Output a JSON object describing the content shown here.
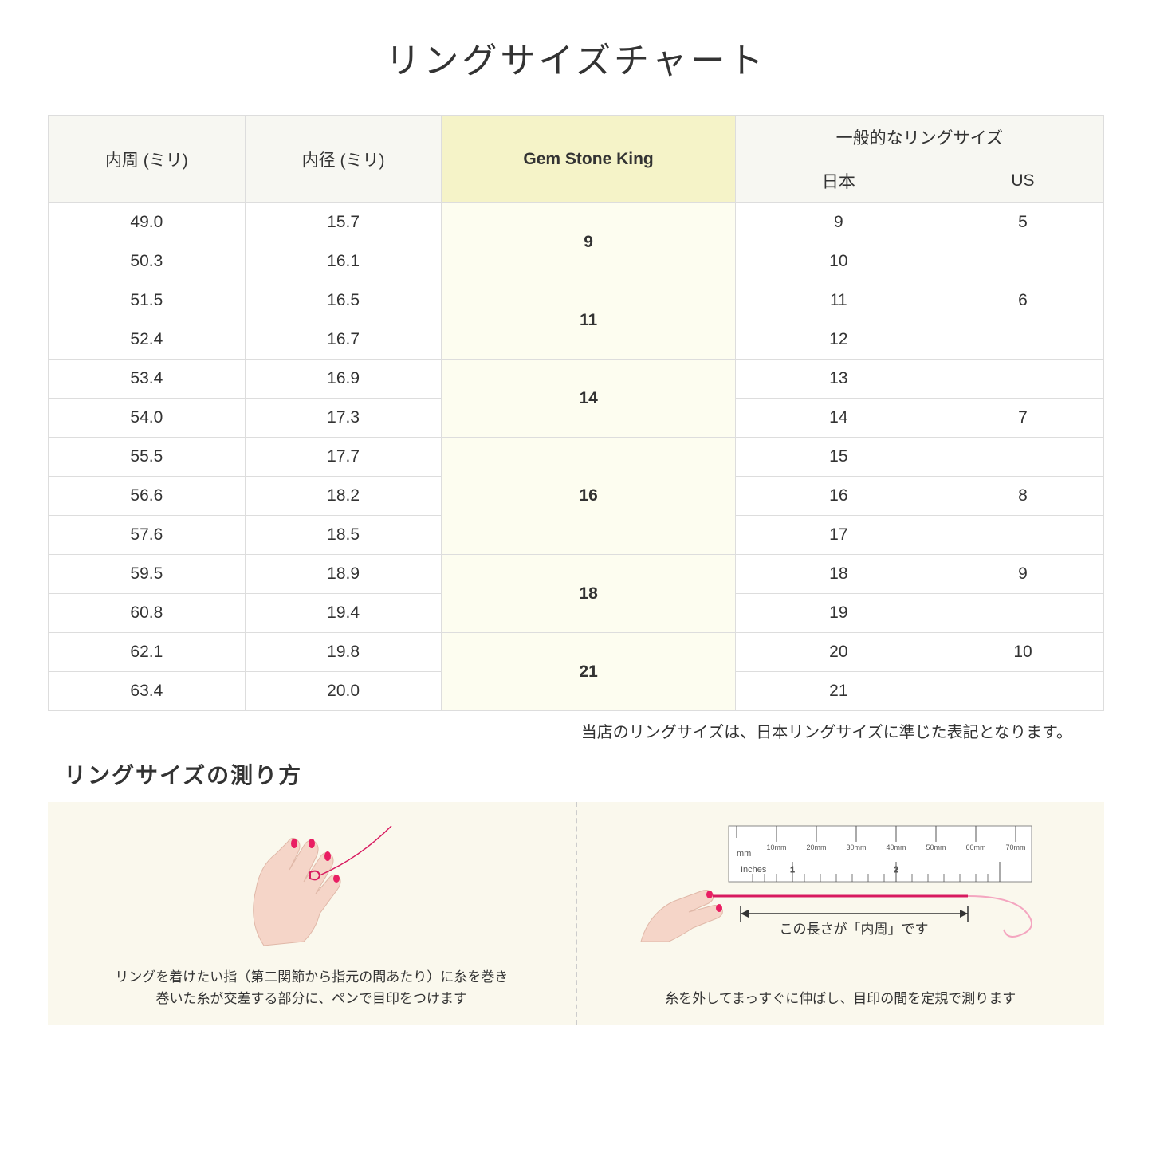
{
  "title": "リングサイズチャート",
  "headers": {
    "col1": "内周 (ミリ)",
    "col2": "内径 (ミリ)",
    "col3": "Gem Stone King",
    "col4_group": "一般的なリングサイズ",
    "col4a": "日本",
    "col4b": "US"
  },
  "rows": [
    {
      "c": "49.0",
      "d": "15.7",
      "g": "9",
      "gspan": 2,
      "jp": "9",
      "us": "5"
    },
    {
      "c": "50.3",
      "d": "16.1",
      "g": null,
      "jp": "10",
      "us": ""
    },
    {
      "c": "51.5",
      "d": "16.5",
      "g": "11",
      "gspan": 2,
      "jp": "11",
      "us": "6"
    },
    {
      "c": "52.4",
      "d": "16.7",
      "g": null,
      "jp": "12",
      "us": ""
    },
    {
      "c": "53.4",
      "d": "16.9",
      "g": "14",
      "gspan": 2,
      "jp": "13",
      "us": ""
    },
    {
      "c": "54.0",
      "d": "17.3",
      "g": null,
      "jp": "14",
      "us": "7"
    },
    {
      "c": "55.5",
      "d": "17.7",
      "g": "16",
      "gspan": 3,
      "jp": "15",
      "us": ""
    },
    {
      "c": "56.6",
      "d": "18.2",
      "g": null,
      "jp": "16",
      "us": "8"
    },
    {
      "c": "57.6",
      "d": "18.5",
      "g": null,
      "jp": "17",
      "us": ""
    },
    {
      "c": "59.5",
      "d": "18.9",
      "g": "18",
      "gspan": 2,
      "jp": "18",
      "us": "9"
    },
    {
      "c": "60.8",
      "d": "19.4",
      "g": null,
      "jp": "19",
      "us": ""
    },
    {
      "c": "62.1",
      "d": "19.8",
      "g": "21",
      "gspan": 2,
      "jp": "20",
      "us": "10"
    },
    {
      "c": "63.4",
      "d": "20.0",
      "g": null,
      "jp": "21",
      "us": ""
    }
  ],
  "note": "当店のリングサイズは、日本リングサイズに準じた表記となります。",
  "measure": {
    "title": "リングサイズの測り方",
    "left_text": "リングを着けたい指（第二関節から指元の間あたり）に糸を巻き\n巻いた糸が交差する部分に、ペンで目印をつけます",
    "right_text": "糸を外してまっすぐに伸ばし、目印の間を定規で測ります",
    "arrow_label": "この長さが「内周」です",
    "ruler_mm": "mm",
    "ruler_inches": "Inches",
    "ruler_ticks": [
      "10mm",
      "20mm",
      "30mm",
      "40mm",
      "50mm",
      "60mm",
      "70mm"
    ]
  },
  "colors": {
    "header_bg": "#f7f7f2",
    "highlight_header_bg": "#f5f3c8",
    "highlight_cell_bg": "#fdfdf0",
    "border": "#dddddd",
    "measure_bg": "#faf8ed",
    "skin": "#f5d5c8",
    "nail": "#e91e63",
    "thread": "#d81b60"
  }
}
